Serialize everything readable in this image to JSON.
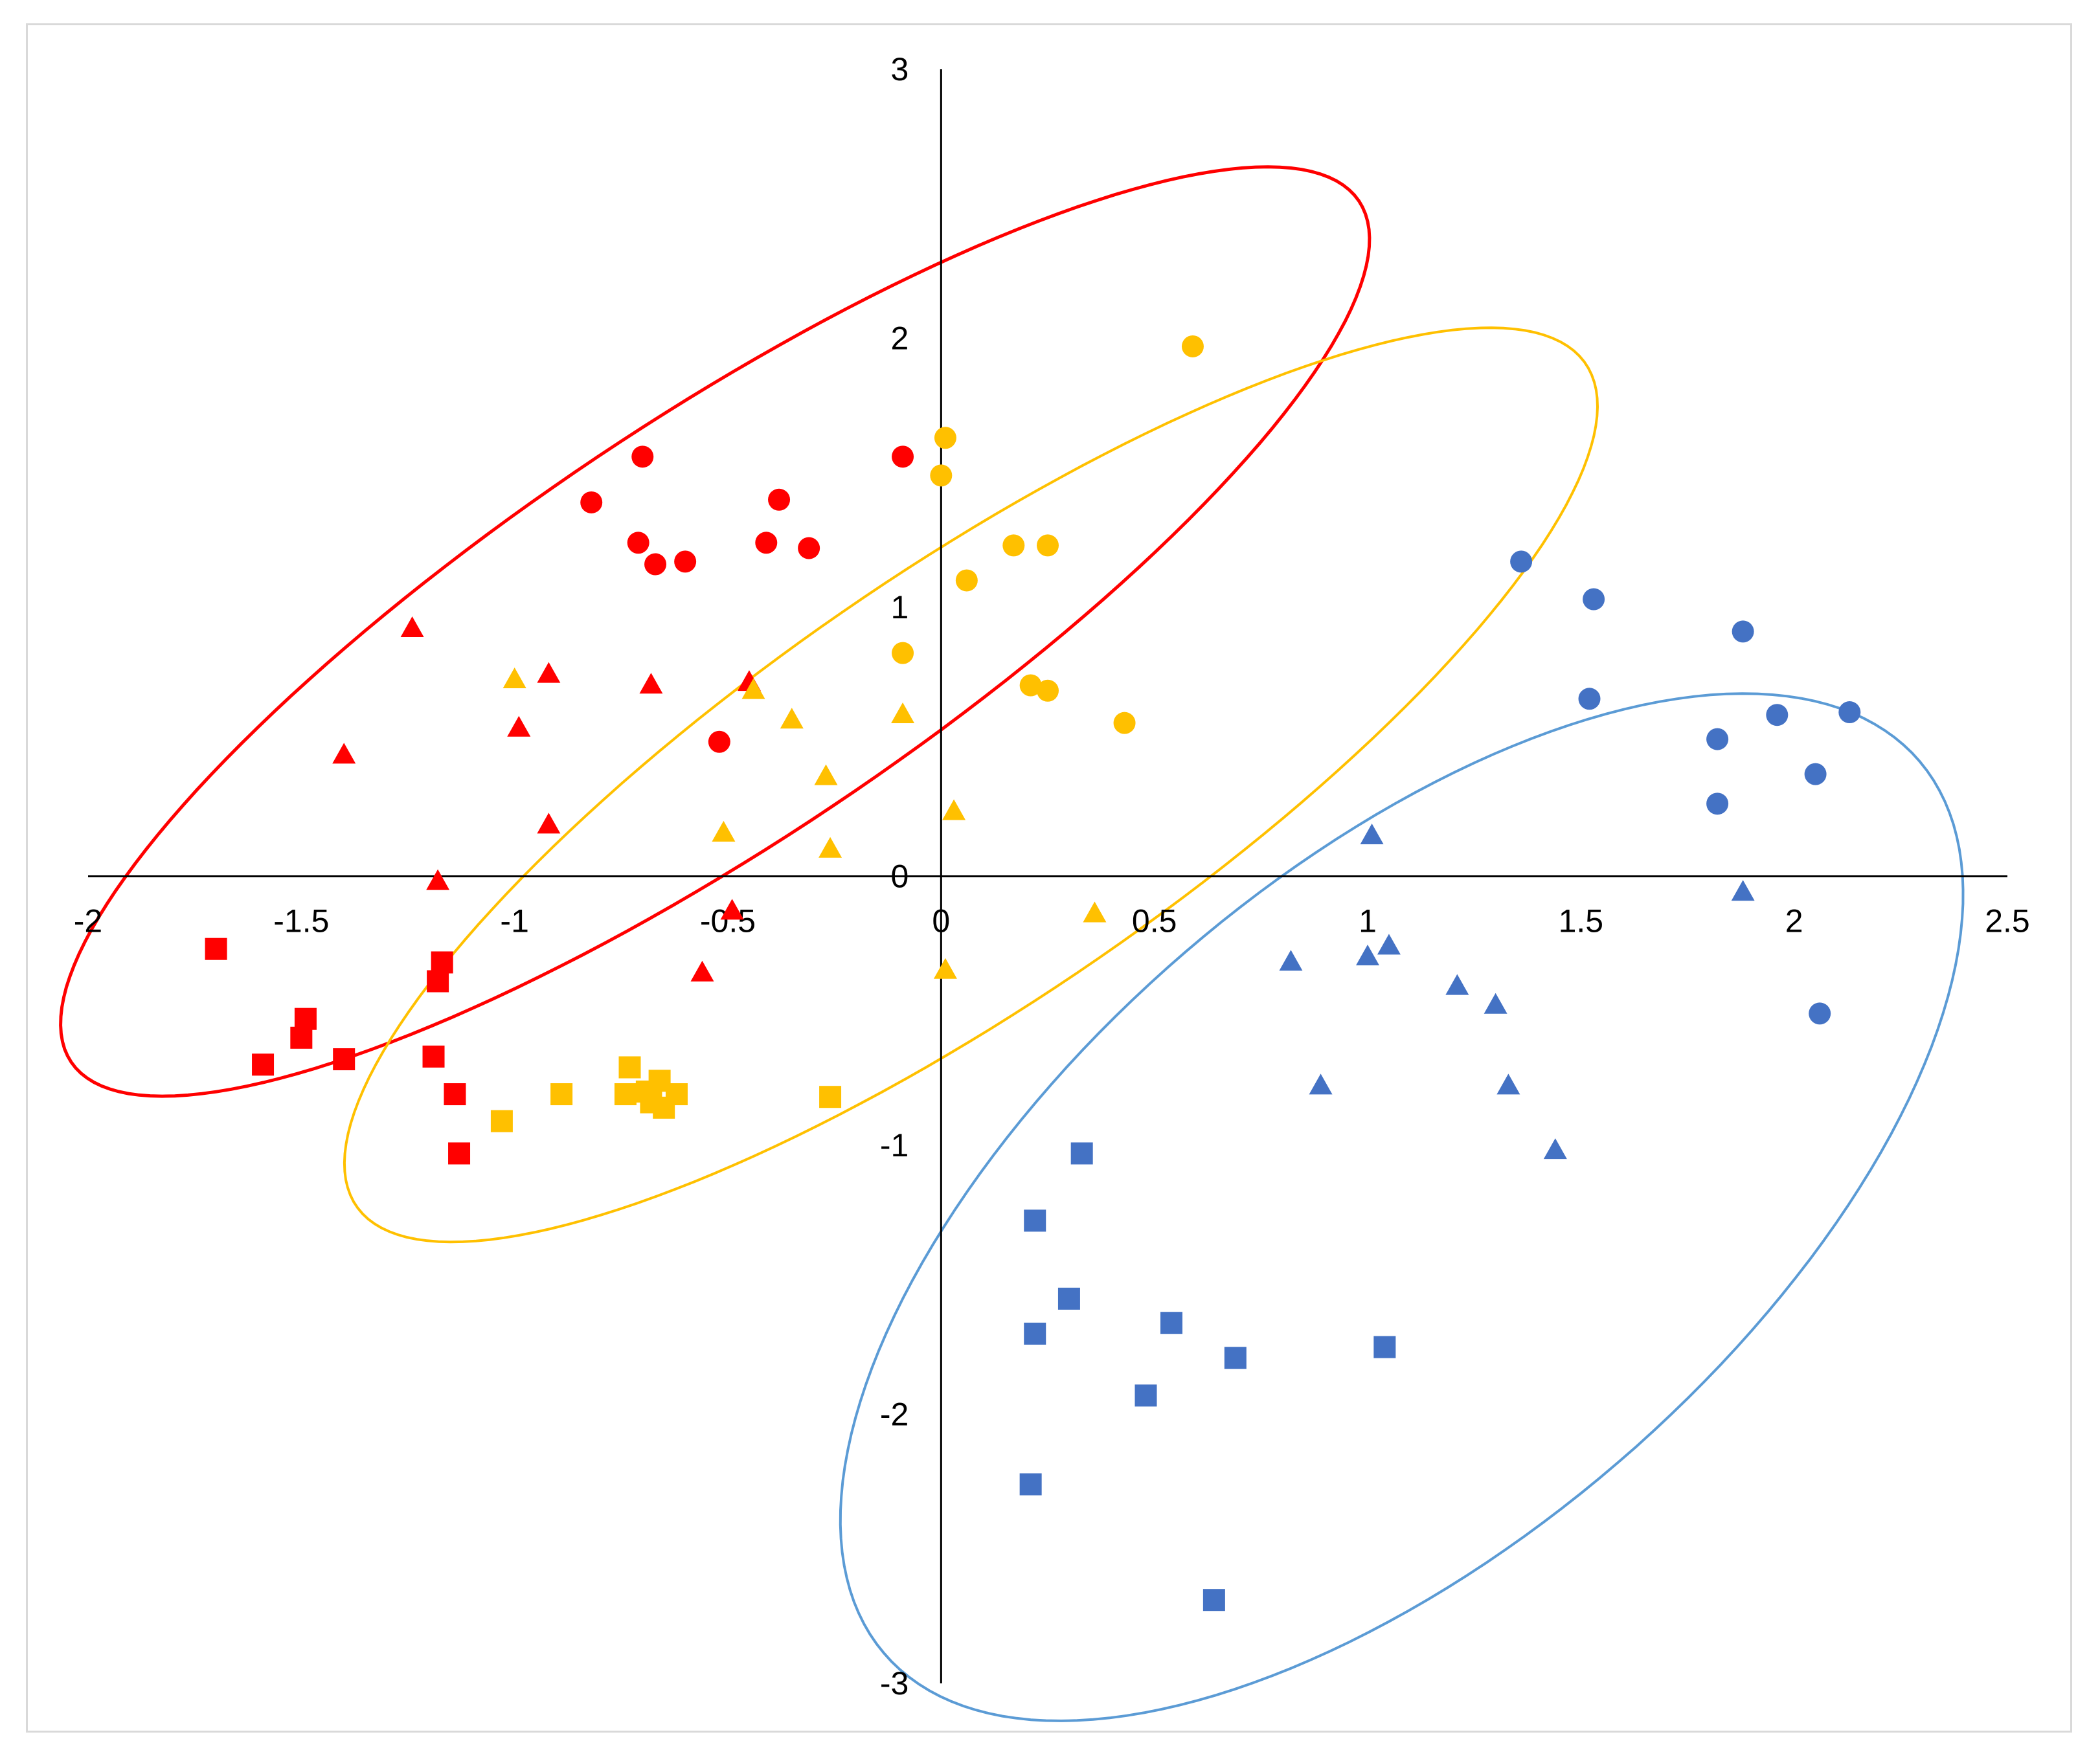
{
  "chart_data": {
    "type": "scatter",
    "title": "",
    "xlabel": "",
    "ylabel": "",
    "xlim": [
      -2,
      2.5
    ],
    "ylim": [
      -3,
      3
    ],
    "x_ticks": [
      "-2",
      "-1.5",
      "-1",
      "-0.5",
      "0",
      "0.5",
      "1",
      "1.5",
      "2",
      "2.5"
    ],
    "y_ticks": [
      "-3",
      "-2",
      "-1",
      "0",
      "1",
      "2",
      "3"
    ],
    "grid": false,
    "legend": "none",
    "colors": {
      "red": "#ff0000",
      "yellow": "#ffc000",
      "blue": "#4472c4",
      "blue_ellipse": "#5b9bd5"
    },
    "series": [
      {
        "color": "red",
        "marker": "circle",
        "points": [
          [
            -0.7,
            1.56
          ],
          [
            -0.82,
            1.39
          ],
          [
            -0.71,
            1.24
          ],
          [
            -0.67,
            1.16
          ],
          [
            -0.6,
            1.17
          ],
          [
            -0.38,
            1.4
          ],
          [
            -0.41,
            1.24
          ],
          [
            -0.31,
            1.22
          ],
          [
            -0.09,
            1.56
          ],
          [
            -0.52,
            0.5
          ]
        ]
      },
      {
        "color": "red",
        "marker": "triangle",
        "points": [
          [
            -1.24,
            0.92
          ],
          [
            -1.4,
            0.45
          ],
          [
            -0.92,
            0.75
          ],
          [
            -0.99,
            0.55
          ],
          [
            -0.68,
            0.71
          ],
          [
            -0.45,
            0.72
          ],
          [
            -0.92,
            0.19
          ],
          [
            -1.18,
            -0.02
          ],
          [
            -0.56,
            -0.36
          ],
          [
            -0.49,
            -0.13
          ]
        ]
      },
      {
        "color": "red",
        "marker": "square",
        "points": [
          [
            -1.7,
            -0.27
          ],
          [
            -1.17,
            -0.32
          ],
          [
            -1.18,
            -0.39
          ],
          [
            -1.49,
            -0.53
          ],
          [
            -1.5,
            -0.6
          ],
          [
            -1.59,
            -0.7
          ],
          [
            -1.4,
            -0.68
          ],
          [
            -1.19,
            -0.67
          ],
          [
            -1.14,
            -0.81
          ],
          [
            -1.13,
            -1.03
          ]
        ]
      },
      {
        "color": "yellow",
        "marker": "circle",
        "points": [
          [
            0.59,
            1.97
          ],
          [
            0.01,
            1.63
          ],
          [
            0.0,
            1.49
          ],
          [
            0.17,
            1.23
          ],
          [
            0.25,
            1.23
          ],
          [
            0.06,
            1.1
          ],
          [
            -0.09,
            0.83
          ],
          [
            0.21,
            0.71
          ],
          [
            0.25,
            0.69
          ],
          [
            0.43,
            0.57
          ]
        ]
      },
      {
        "color": "yellow",
        "marker": "triangle",
        "points": [
          [
            -1.0,
            0.73
          ],
          [
            -0.44,
            0.69
          ],
          [
            -0.35,
            0.58
          ],
          [
            -0.09,
            0.6
          ],
          [
            -0.27,
            0.37
          ],
          [
            0.03,
            0.24
          ],
          [
            -0.51,
            0.16
          ],
          [
            -0.26,
            0.1
          ],
          [
            0.36,
            -0.14
          ],
          [
            0.01,
            -0.35
          ]
        ]
      },
      {
        "color": "yellow",
        "marker": "square",
        "points": [
          [
            -0.73,
            -0.71
          ],
          [
            -0.66,
            -0.76
          ],
          [
            -0.69,
            -0.8
          ],
          [
            -0.62,
            -0.81
          ],
          [
            -0.74,
            -0.81
          ],
          [
            -0.68,
            -0.84
          ],
          [
            -0.65,
            -0.86
          ],
          [
            -0.89,
            -0.81
          ],
          [
            -1.03,
            -0.91
          ],
          [
            -0.26,
            -0.82
          ]
        ]
      },
      {
        "color": "blue",
        "marker": "circle",
        "points": [
          [
            1.36,
            1.17
          ],
          [
            1.53,
            1.03
          ],
          [
            1.88,
            0.91
          ],
          [
            1.52,
            0.66
          ],
          [
            1.82,
            0.51
          ],
          [
            1.96,
            0.6
          ],
          [
            2.13,
            0.61
          ],
          [
            2.05,
            0.38
          ],
          [
            1.82,
            0.27
          ],
          [
            2.06,
            -0.51
          ]
        ]
      },
      {
        "color": "blue",
        "marker": "triangle",
        "points": [
          [
            1.01,
            0.15
          ],
          [
            1.88,
            -0.06
          ],
          [
            0.82,
            -0.32
          ],
          [
            1.0,
            -0.3
          ],
          [
            1.05,
            -0.26
          ],
          [
            1.21,
            -0.41
          ],
          [
            1.3,
            -0.48
          ],
          [
            0.89,
            -0.78
          ],
          [
            1.33,
            -0.78
          ],
          [
            1.44,
            -1.02
          ]
        ]
      },
      {
        "color": "blue",
        "marker": "square",
        "points": [
          [
            0.33,
            -1.03
          ],
          [
            0.22,
            -1.28
          ],
          [
            0.3,
            -1.57
          ],
          [
            0.22,
            -1.7
          ],
          [
            0.54,
            -1.66
          ],
          [
            0.48,
            -1.93
          ],
          [
            0.69,
            -1.79
          ],
          [
            1.04,
            -1.75
          ],
          [
            0.21,
            -2.26
          ],
          [
            0.64,
            -2.69
          ]
        ]
      }
    ],
    "ellipses": [
      {
        "color": "red",
        "cx": -0.53,
        "cy": 0.91,
        "rx": 2.22,
        "ry": 0.64,
        "angle_deg": 49
      },
      {
        "color": "yellow",
        "cx": 0.07,
        "cy": 0.34,
        "rx": 2.15,
        "ry": 0.65,
        "angle_deg": 50
      },
      {
        "color": "blue_ellipse",
        "cx": 1.08,
        "cy": -1.23,
        "rx": 2.12,
        "ry": 0.94,
        "angle_deg": 61
      }
    ]
  }
}
